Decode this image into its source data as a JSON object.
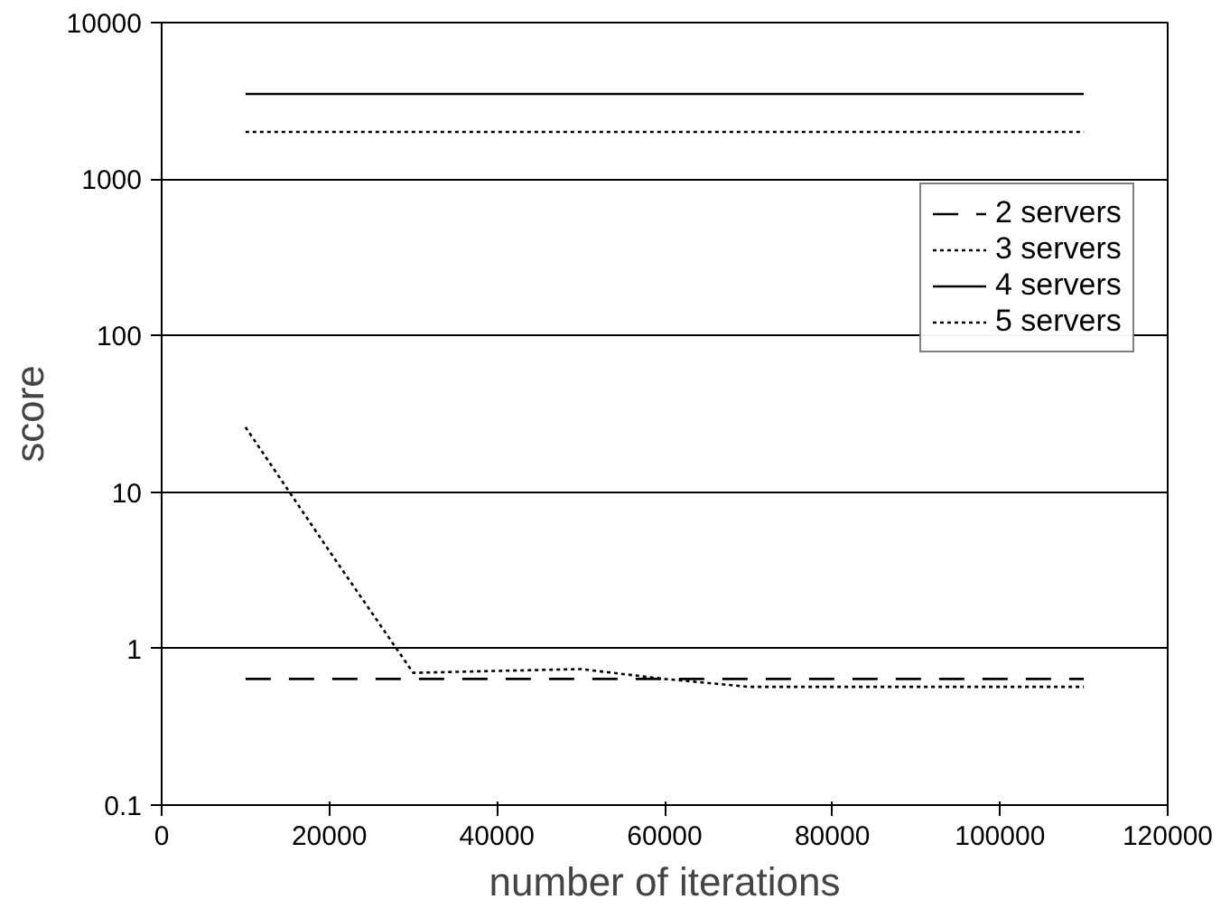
{
  "chart_data": {
    "type": "line",
    "xlabel": "number of iterations",
    "ylabel": "score",
    "x": [
      10000,
      20000,
      30000,
      40000,
      50000,
      60000,
      70000,
      80000,
      90000,
      100000,
      110000
    ],
    "series": [
      {
        "name": "2 servers",
        "color": "#000000",
        "line_style": "dashed",
        "values": [
          0.64,
          0.64,
          0.64,
          0.64,
          0.64,
          0.64,
          0.64,
          0.64,
          0.64,
          0.64,
          0.64
        ]
      },
      {
        "name": "3 servers",
        "color": "#000000",
        "line_style": "dotted",
        "values": [
          26,
          4.2,
          0.7,
          0.72,
          0.74,
          0.64,
          0.57,
          0.57,
          0.57,
          0.57,
          0.57
        ]
      },
      {
        "name": "4 servers",
        "color": "#000000",
        "line_style": "solid",
        "values": [
          3500,
          3500,
          3500,
          3500,
          3500,
          3500,
          3500,
          3500,
          3500,
          3500,
          3500
        ]
      },
      {
        "name": "5 servers",
        "color": "#000000",
        "line_style": "dotted",
        "values": [
          2000,
          2000,
          2000,
          2000,
          2000,
          2000,
          2000,
          2000,
          2000,
          2000,
          2000
        ]
      }
    ],
    "xlim": [
      0,
      120000
    ],
    "xticks": [
      0,
      20000,
      40000,
      60000,
      80000,
      100000,
      120000
    ],
    "ylim": [
      0.1,
      10000
    ],
    "yticks": [
      0.1,
      1,
      10,
      100,
      1000,
      10000
    ],
    "log": "y",
    "grid": "y",
    "legend": "top right",
    "marker": "none"
  }
}
